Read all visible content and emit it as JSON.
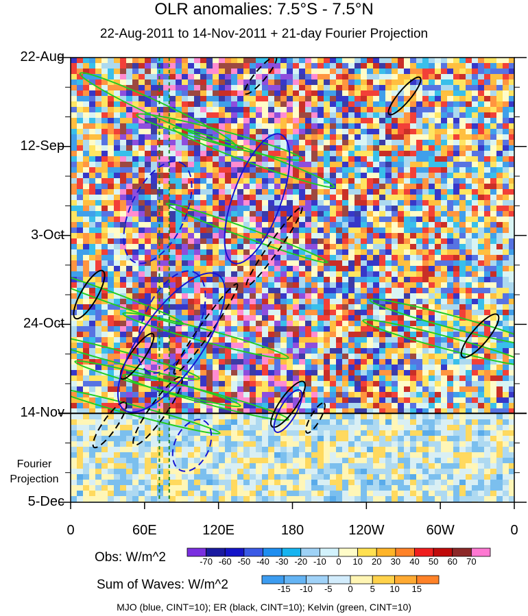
{
  "chart_data": {
    "type": "heatmap",
    "title": "OLR anomalies: 7.5°S - 7.5°N",
    "subtitle": "22-Aug-2011 to 14-Nov-2011 + 21-day Fourier Projection",
    "x_tick_labels": [
      "0",
      "60E",
      "120E",
      "180",
      "120W",
      "60W",
      "0"
    ],
    "x_tick_values_deg": [
      0,
      60,
      120,
      180,
      240,
      300,
      360
    ],
    "y_tick_labels": [
      "22-Aug",
      "12-Sep",
      "3-Oct",
      "24-Oct",
      "14-Nov",
      "5-Dec"
    ],
    "y_tick_dates": [
      "2011-08-22",
      "2011-09-12",
      "2011-10-03",
      "2011-10-24",
      "2011-11-14",
      "2011-12-05"
    ],
    "xlim_deg": [
      0,
      360
    ],
    "ylim_dates": [
      "2011-08-22",
      "2011-12-05"
    ],
    "y_reversed": true,
    "projection_label": "Fourier Projection",
    "projection_start": "2011-11-14",
    "obs_colorbar": {
      "label": "Obs: W/m^2",
      "ticks": [
        "-70",
        "-60",
        "-50",
        "-40",
        "-30",
        "-20",
        "-10",
        "0",
        "10",
        "20",
        "30",
        "40",
        "50",
        "60",
        "70"
      ],
      "colors": [
        "#7a2fe0",
        "#1a1aa0",
        "#1414c8",
        "#3a5ae6",
        "#1e8ef0",
        "#16b4f0",
        "#9ed2f6",
        "#d2f2fc",
        "#fffcc8",
        "#ffe050",
        "#ffb428",
        "#ff8228",
        "#f01e1e",
        "#c00a0a",
        "#8c2828",
        "#ff78d2"
      ]
    },
    "waves_colorbar": {
      "label": "Sum of Waves: W/m^2",
      "ticks": [
        "-15",
        "-10",
        "-5",
        "0",
        "5",
        "10",
        "15"
      ],
      "colors": [
        "#3c9cf0",
        "#64b4f4",
        "#a0d2f8",
        "#d2ecfc",
        "#fff5b4",
        "#ffd24b",
        "#ffaa32",
        "#ff8228"
      ]
    },
    "contours": [
      {
        "wave": "MJO",
        "color": "#1414d2",
        "cint": 10
      },
      {
        "wave": "ER",
        "color": "#000000",
        "cint": 10
      },
      {
        "wave": "Kelvin",
        "color": "#22cc22",
        "cint": 10
      }
    ],
    "reference_lines_deg": [
      72,
      80
    ],
    "footer": "MJO (blue, CINT=10); ER (black, CINT=10); Kelvin (green, CINT=10)"
  }
}
